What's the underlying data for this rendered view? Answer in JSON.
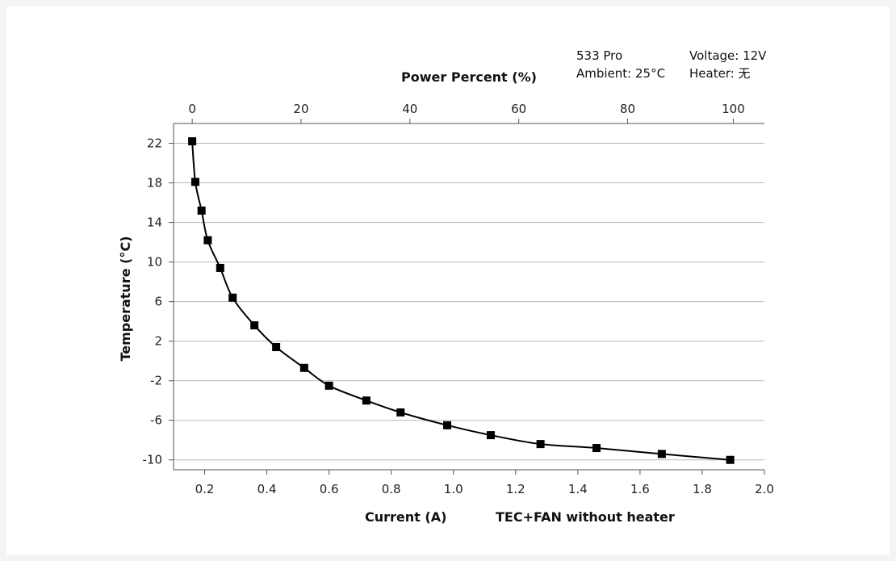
{
  "chart_data": {
    "type": "line",
    "title": "",
    "xlabel": "Current (A)",
    "xlabel_note": "TEC+FAN without heater",
    "x2label": "Power Percent (%)",
    "ylabel": "Temperature (°C)",
    "xlim": [
      0.1,
      2.0
    ],
    "ylim": [
      -11,
      24
    ],
    "x_ticks": [
      "0.2",
      "0.4",
      "0.6",
      "0.8",
      "1.0",
      "1.2",
      "1.4",
      "1.6",
      "1.8",
      "2.0"
    ],
    "x2_ticks": [
      "0",
      "20",
      "40",
      "60",
      "80",
      "100"
    ],
    "x2_tick_current": [
      0.16,
      0.51,
      0.86,
      1.21,
      1.56,
      1.9
    ],
    "y_ticks": [
      "22",
      "18",
      "14",
      "10",
      "6",
      "2",
      "-2",
      "-6",
      "-10"
    ],
    "grid": "horizontal",
    "series": [
      {
        "x": [
          0.16,
          0.17,
          0.19,
          0.21,
          0.25,
          0.29,
          0.36,
          0.43,
          0.52,
          0.6,
          0.72,
          0.83,
          0.98,
          1.12,
          1.28,
          1.46,
          1.67,
          1.89
        ],
        "y": [
          22.2,
          18.1,
          15.2,
          12.2,
          9.4,
          6.4,
          3.6,
          1.4,
          -0.7,
          -2.5,
          -4.0,
          -5.2,
          -6.5,
          -7.5,
          -8.4,
          -8.8,
          -9.4,
          -10.0
        ],
        "color": "#000000",
        "marker": "square"
      }
    ]
  },
  "info": {
    "model": "533 Pro",
    "ambient": "Ambient: 25°C",
    "voltage": "Voltage: 12V",
    "heater": "Heater: 无"
  }
}
